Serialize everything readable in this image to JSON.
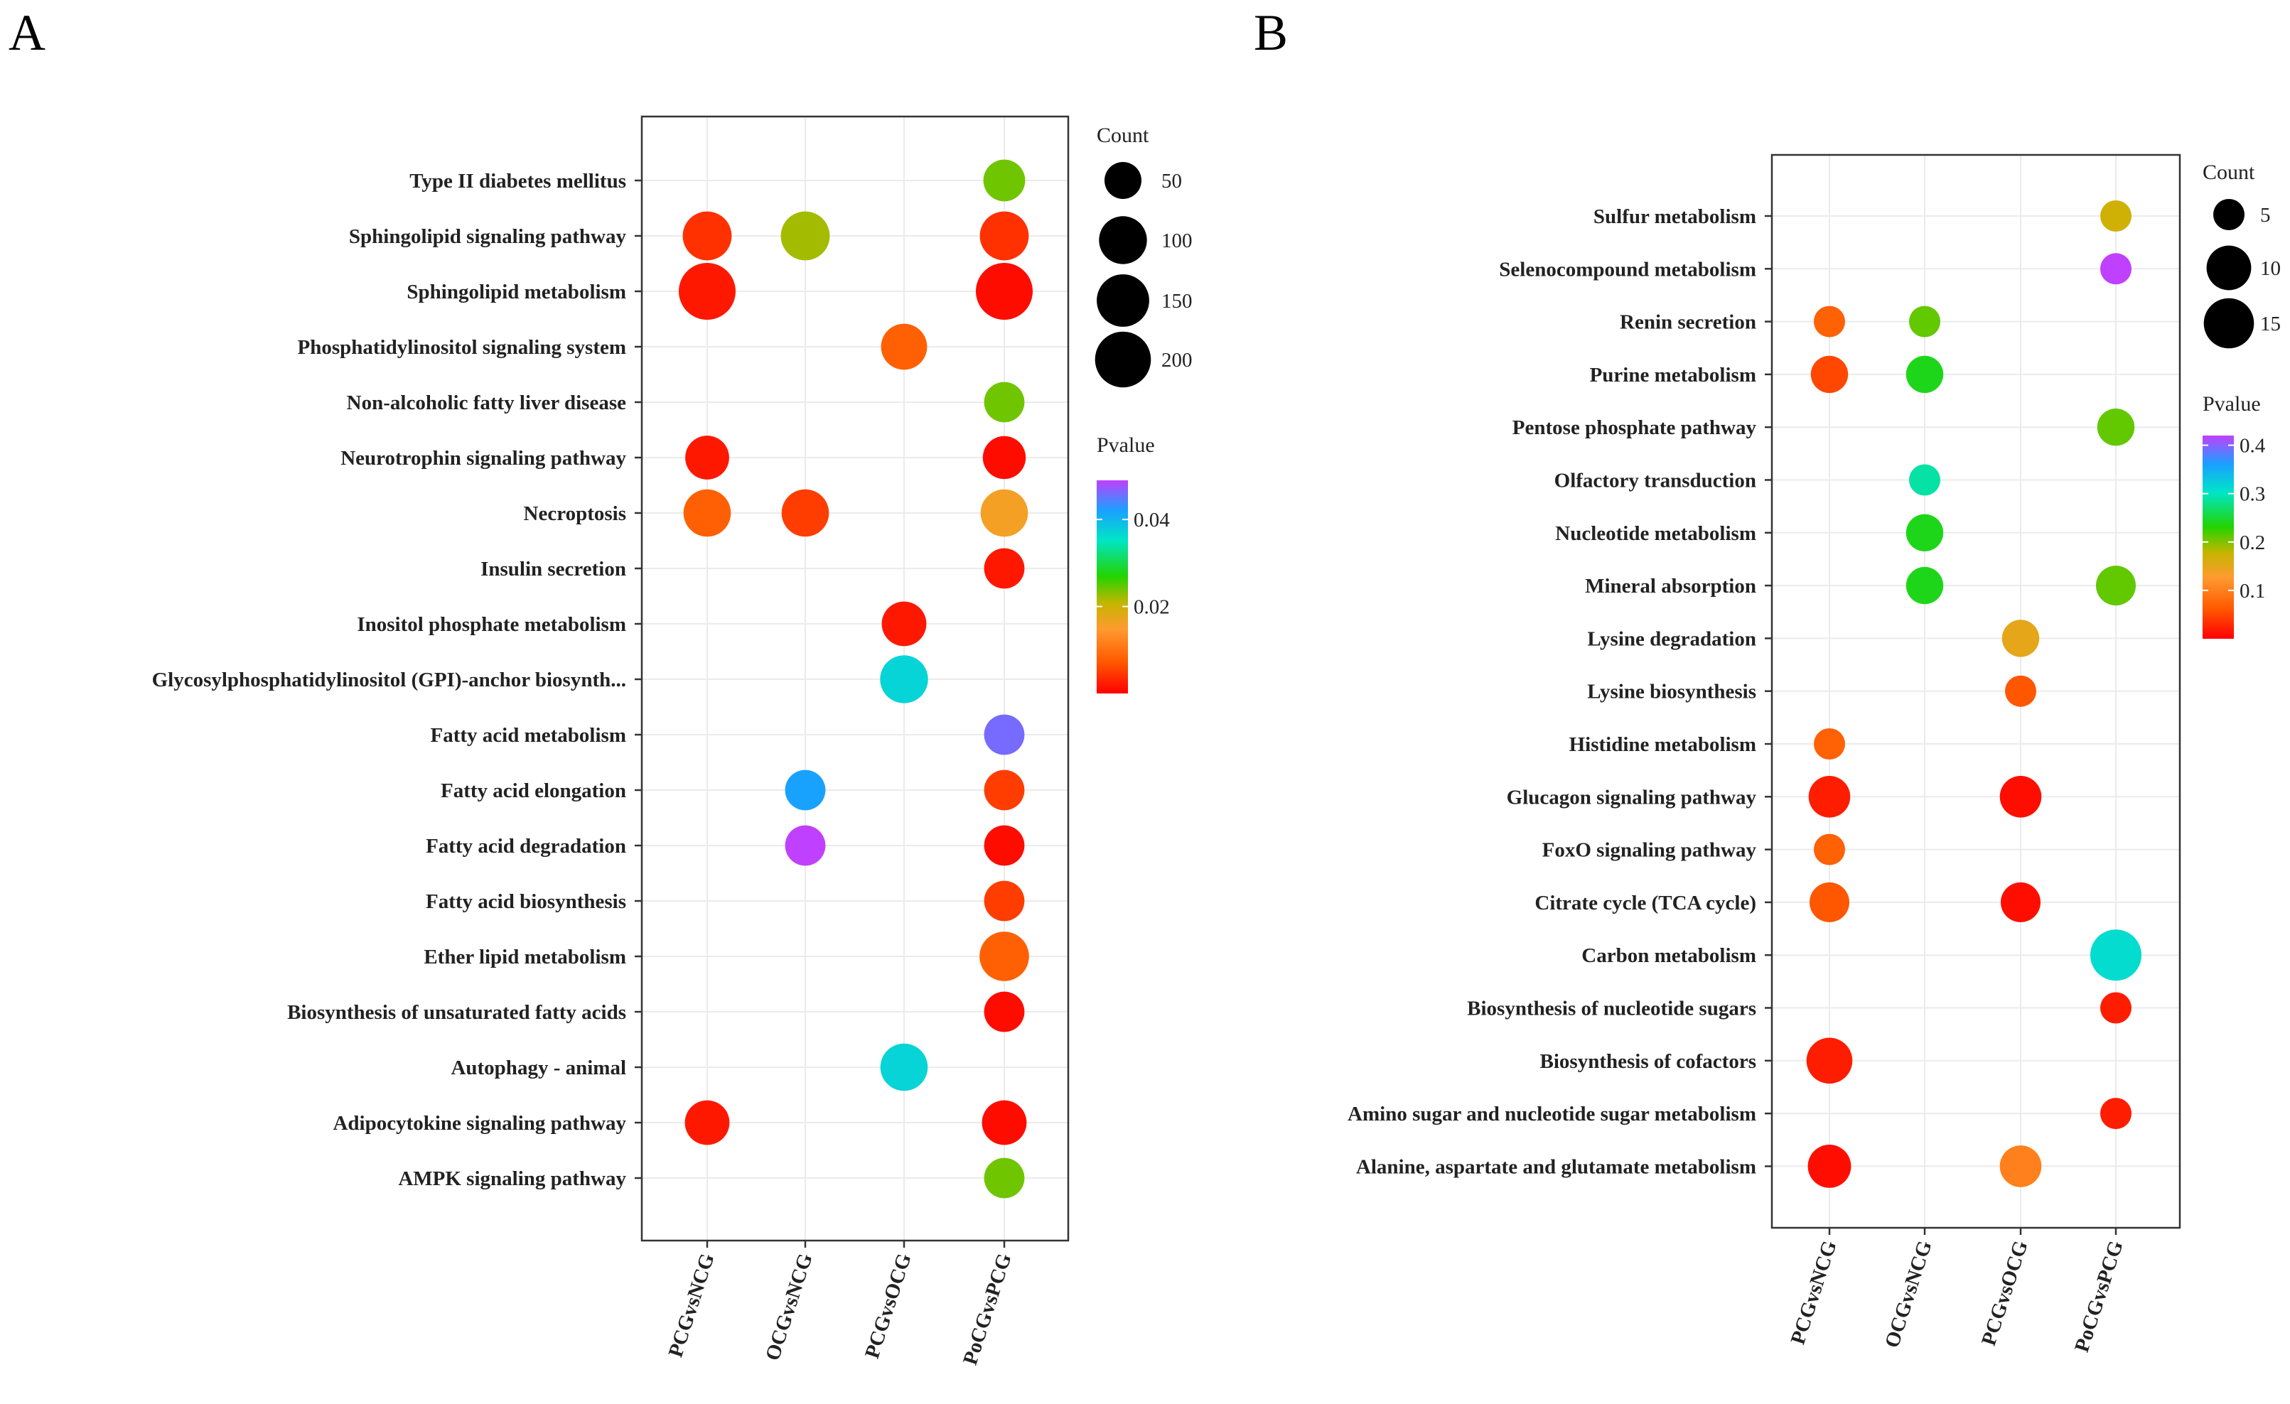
{
  "chart_data": [
    {
      "panel": "A",
      "type": "scatter",
      "subtype": "bubble",
      "categories": [
        "PCGvsNCG",
        "OCGvsNCG",
        "PCGvsOCG",
        "PoCGvsPCG"
      ],
      "pathways": [
        "Type II diabetes mellitus",
        "Sphingolipid signaling pathway",
        "Sphingolipid metabolism",
        "Phosphatidylinositol signaling system",
        "Non-alcoholic fatty liver disease",
        "Neurotrophin signaling pathway",
        "Necroptosis",
        "Insulin secretion",
        "Inositol phosphate metabolism",
        "Glycosylphosphatidylinositol (GPI)-anchor biosynth...",
        "Fatty acid metabolism",
        "Fatty acid elongation",
        "Fatty acid degradation",
        "Fatty acid biosynthesis",
        "Ether lipid metabolism",
        "Biosynthesis of unsaturated fatty acids",
        "Autophagy - animal",
        "Adipocytokine signaling pathway",
        "AMPK signaling pathway"
      ],
      "points": [
        {
          "pathway": 0,
          "group": 3,
          "count": 60,
          "pvalue": 0.024
        },
        {
          "pathway": 1,
          "group": 0,
          "count": 110,
          "pvalue": 0.004
        },
        {
          "pathway": 1,
          "group": 1,
          "count": 110,
          "pvalue": 0.022
        },
        {
          "pathway": 1,
          "group": 3,
          "count": 110,
          "pvalue": 0.004
        },
        {
          "pathway": 2,
          "group": 0,
          "count": 215,
          "pvalue": 0.002
        },
        {
          "pathway": 2,
          "group": 3,
          "count": 215,
          "pvalue": 0.001
        },
        {
          "pathway": 3,
          "group": 2,
          "count": 85,
          "pvalue": 0.008
        },
        {
          "pathway": 4,
          "group": 3,
          "count": 55,
          "pvalue": 0.024
        },
        {
          "pathway": 5,
          "group": 0,
          "count": 70,
          "pvalue": 0.002
        },
        {
          "pathway": 5,
          "group": 3,
          "count": 65,
          "pvalue": 0.001
        },
        {
          "pathway": 6,
          "group": 0,
          "count": 95,
          "pvalue": 0.008
        },
        {
          "pathway": 6,
          "group": 1,
          "count": 95,
          "pvalue": 0.005
        },
        {
          "pathway": 6,
          "group": 3,
          "count": 95,
          "pvalue": 0.016
        },
        {
          "pathway": 7,
          "group": 3,
          "count": 55,
          "pvalue": 0.002
        },
        {
          "pathway": 8,
          "group": 2,
          "count": 75,
          "pvalue": 0.002
        },
        {
          "pathway": 9,
          "group": 2,
          "count": 100,
          "pvalue": 0.037
        },
        {
          "pathway": 10,
          "group": 3,
          "count": 55,
          "pvalue": 0.046
        },
        {
          "pathway": 11,
          "group": 1,
          "count": 55,
          "pvalue": 0.042
        },
        {
          "pathway": 11,
          "group": 3,
          "count": 55,
          "pvalue": 0.005
        },
        {
          "pathway": 12,
          "group": 1,
          "count": 55,
          "pvalue": 0.049
        },
        {
          "pathway": 12,
          "group": 3,
          "count": 55,
          "pvalue": 0.001
        },
        {
          "pathway": 13,
          "group": 3,
          "count": 55,
          "pvalue": 0.005
        },
        {
          "pathway": 14,
          "group": 3,
          "count": 115,
          "pvalue": 0.008
        },
        {
          "pathway": 15,
          "group": 3,
          "count": 55,
          "pvalue": 0.001
        },
        {
          "pathway": 16,
          "group": 2,
          "count": 95,
          "pvalue": 0.037
        },
        {
          "pathway": 17,
          "group": 0,
          "count": 75,
          "pvalue": 0.002
        },
        {
          "pathway": 17,
          "group": 3,
          "count": 75,
          "pvalue": 0.001
        },
        {
          "pathway": 18,
          "group": 3,
          "count": 55,
          "pvalue": 0.024
        }
      ],
      "size_legend": {
        "title": "Count",
        "values": [
          50,
          100,
          150,
          200
        ]
      },
      "color_legend": {
        "title": "Pvalue",
        "ticks": [
          0.02,
          0.04
        ],
        "range": [
          0,
          0.049
        ]
      }
    },
    {
      "panel": "B",
      "type": "scatter",
      "subtype": "bubble",
      "categories": [
        "PCGvsNCG",
        "OCGvsNCG",
        "PCGvsOCG",
        "PoCGvsPCG"
      ],
      "pathways": [
        "Sulfur metabolism",
        "Selenocompound metabolism",
        "Renin secretion",
        "Purine metabolism",
        "Pentose phosphate pathway",
        "Olfactory transduction",
        "Nucleotide metabolism",
        "Mineral absorption",
        "Lysine degradation",
        "Lysine biosynthesis",
        "Histidine metabolism",
        "Glucagon signaling pathway",
        "FoxO signaling pathway",
        "Citrate cycle (TCA cycle)",
        "Carbon metabolism",
        "Biosynthesis of nucleotide sugars",
        "Biosynthesis of cofactors",
        "Amino sugar and nucleotide sugar metabolism",
        "Alanine, aspartate and glutamate metabolism"
      ],
      "points": [
        {
          "pathway": 0,
          "group": 3,
          "count": 5,
          "pvalue": 0.17
        },
        {
          "pathway": 1,
          "group": 3,
          "count": 5,
          "pvalue": 0.42
        },
        {
          "pathway": 2,
          "group": 0,
          "count": 5,
          "pvalue": 0.07
        },
        {
          "pathway": 2,
          "group": 1,
          "count": 5,
          "pvalue": 0.21
        },
        {
          "pathway": 3,
          "group": 0,
          "count": 6,
          "pvalue": 0.05
        },
        {
          "pathway": 3,
          "group": 1,
          "count": 6,
          "pvalue": 0.24
        },
        {
          "pathway": 4,
          "group": 3,
          "count": 6,
          "pvalue": 0.21
        },
        {
          "pathway": 5,
          "group": 1,
          "count": 5,
          "pvalue": 0.29
        },
        {
          "pathway": 6,
          "group": 1,
          "count": 6,
          "pvalue": 0.24
        },
        {
          "pathway": 7,
          "group": 1,
          "count": 6,
          "pvalue": 0.24
        },
        {
          "pathway": 7,
          "group": 3,
          "count": 7,
          "pvalue": 0.21
        },
        {
          "pathway": 8,
          "group": 2,
          "count": 6,
          "pvalue": 0.15
        },
        {
          "pathway": 9,
          "group": 2,
          "count": 5,
          "pvalue": 0.06
        },
        {
          "pathway": 10,
          "group": 0,
          "count": 5,
          "pvalue": 0.07
        },
        {
          "pathway": 11,
          "group": 0,
          "count": 8,
          "pvalue": 0.02
        },
        {
          "pathway": 11,
          "group": 2,
          "count": 8,
          "pvalue": 0.01
        },
        {
          "pathway": 12,
          "group": 0,
          "count": 5,
          "pvalue": 0.07
        },
        {
          "pathway": 13,
          "group": 0,
          "count": 7,
          "pvalue": 0.06
        },
        {
          "pathway": 13,
          "group": 2,
          "count": 7,
          "pvalue": 0.01
        },
        {
          "pathway": 14,
          "group": 3,
          "count": 16,
          "pvalue": 0.31
        },
        {
          "pathway": 15,
          "group": 3,
          "count": 5,
          "pvalue": 0.02
        },
        {
          "pathway": 16,
          "group": 0,
          "count": 11,
          "pvalue": 0.02
        },
        {
          "pathway": 17,
          "group": 3,
          "count": 5,
          "pvalue": 0.02
        },
        {
          "pathway": 18,
          "group": 0,
          "count": 9,
          "pvalue": 0.01
        },
        {
          "pathway": 18,
          "group": 2,
          "count": 8,
          "pvalue": 0.1
        }
      ],
      "size_legend": {
        "title": "Count",
        "values": [
          5,
          10,
          15
        ]
      },
      "color_legend": {
        "title": "Pvalue",
        "ticks": [
          0.1,
          0.2,
          0.3,
          0.4
        ],
        "range": [
          0,
          0.42
        ]
      }
    }
  ]
}
